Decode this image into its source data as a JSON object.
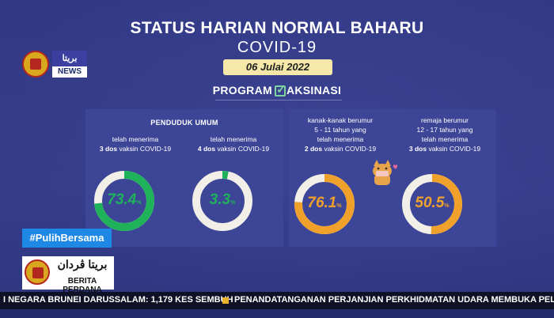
{
  "header": {
    "title_line1": "STATUS HARIAN NORMAL BAHARU",
    "title_line2": "COVID-19",
    "date": "06 Julai 2022",
    "program_prefix": "PROGRAM",
    "program_suffix": "AKSINASI"
  },
  "logos": {
    "top_word": "بريتا",
    "top_news": "NEWS",
    "bottom_arabic": "بريتا ڤردان",
    "bottom_text": "BERITA PERDANA"
  },
  "hashtag": "#PulihBersama",
  "panels": {
    "left": {
      "heading": "PENDUDUK UMUM",
      "items": [
        {
          "line1": "telah menerima",
          "bold": "3 dos",
          "rest": " vaksin COVID-19",
          "value": "73.4",
          "unit": "%",
          "percent": 73.4,
          "color": "#1fb25a"
        },
        {
          "line1": "telah menerima",
          "bold": "4 dos",
          "rest": " vaksin COVID-19",
          "value": "3.3",
          "unit": "%",
          "percent": 3.3,
          "color": "#1fb25a"
        }
      ]
    },
    "right": {
      "items": [
        {
          "line1": "kanak-kanak berumur",
          "line2": "5 - 11 tahun yang",
          "line3": "telah menerima",
          "bold": "2 dos",
          "rest": " vaksin COVID-19",
          "value": "76.1",
          "unit": "%",
          "percent": 76.1,
          "color": "#f0a12c"
        },
        {
          "line1": "remaja berumur",
          "line2": "12 - 17 tahun yang",
          "line3": "telah menerima",
          "bold": "3 dos",
          "rest": " vaksin COVID-19",
          "value": "50.5",
          "unit": "%",
          "percent": 50.5,
          "color": "#f0a12c"
        }
      ]
    }
  },
  "ticker": {
    "left_text": "I NEGARA BRUNEI DARUSSALAM: 1,179 KES SEMBUH",
    "right_text": "PENANDATANGANAN PERJANJIAN PERKHIDMATAN UDARA MEMBUKA PELUANG KI"
  },
  "colors": {
    "background": "#333a86",
    "panel": "#3d4596",
    "track": "#f1efe8",
    "green": "#1fb25a",
    "orange": "#f0a12c"
  }
}
